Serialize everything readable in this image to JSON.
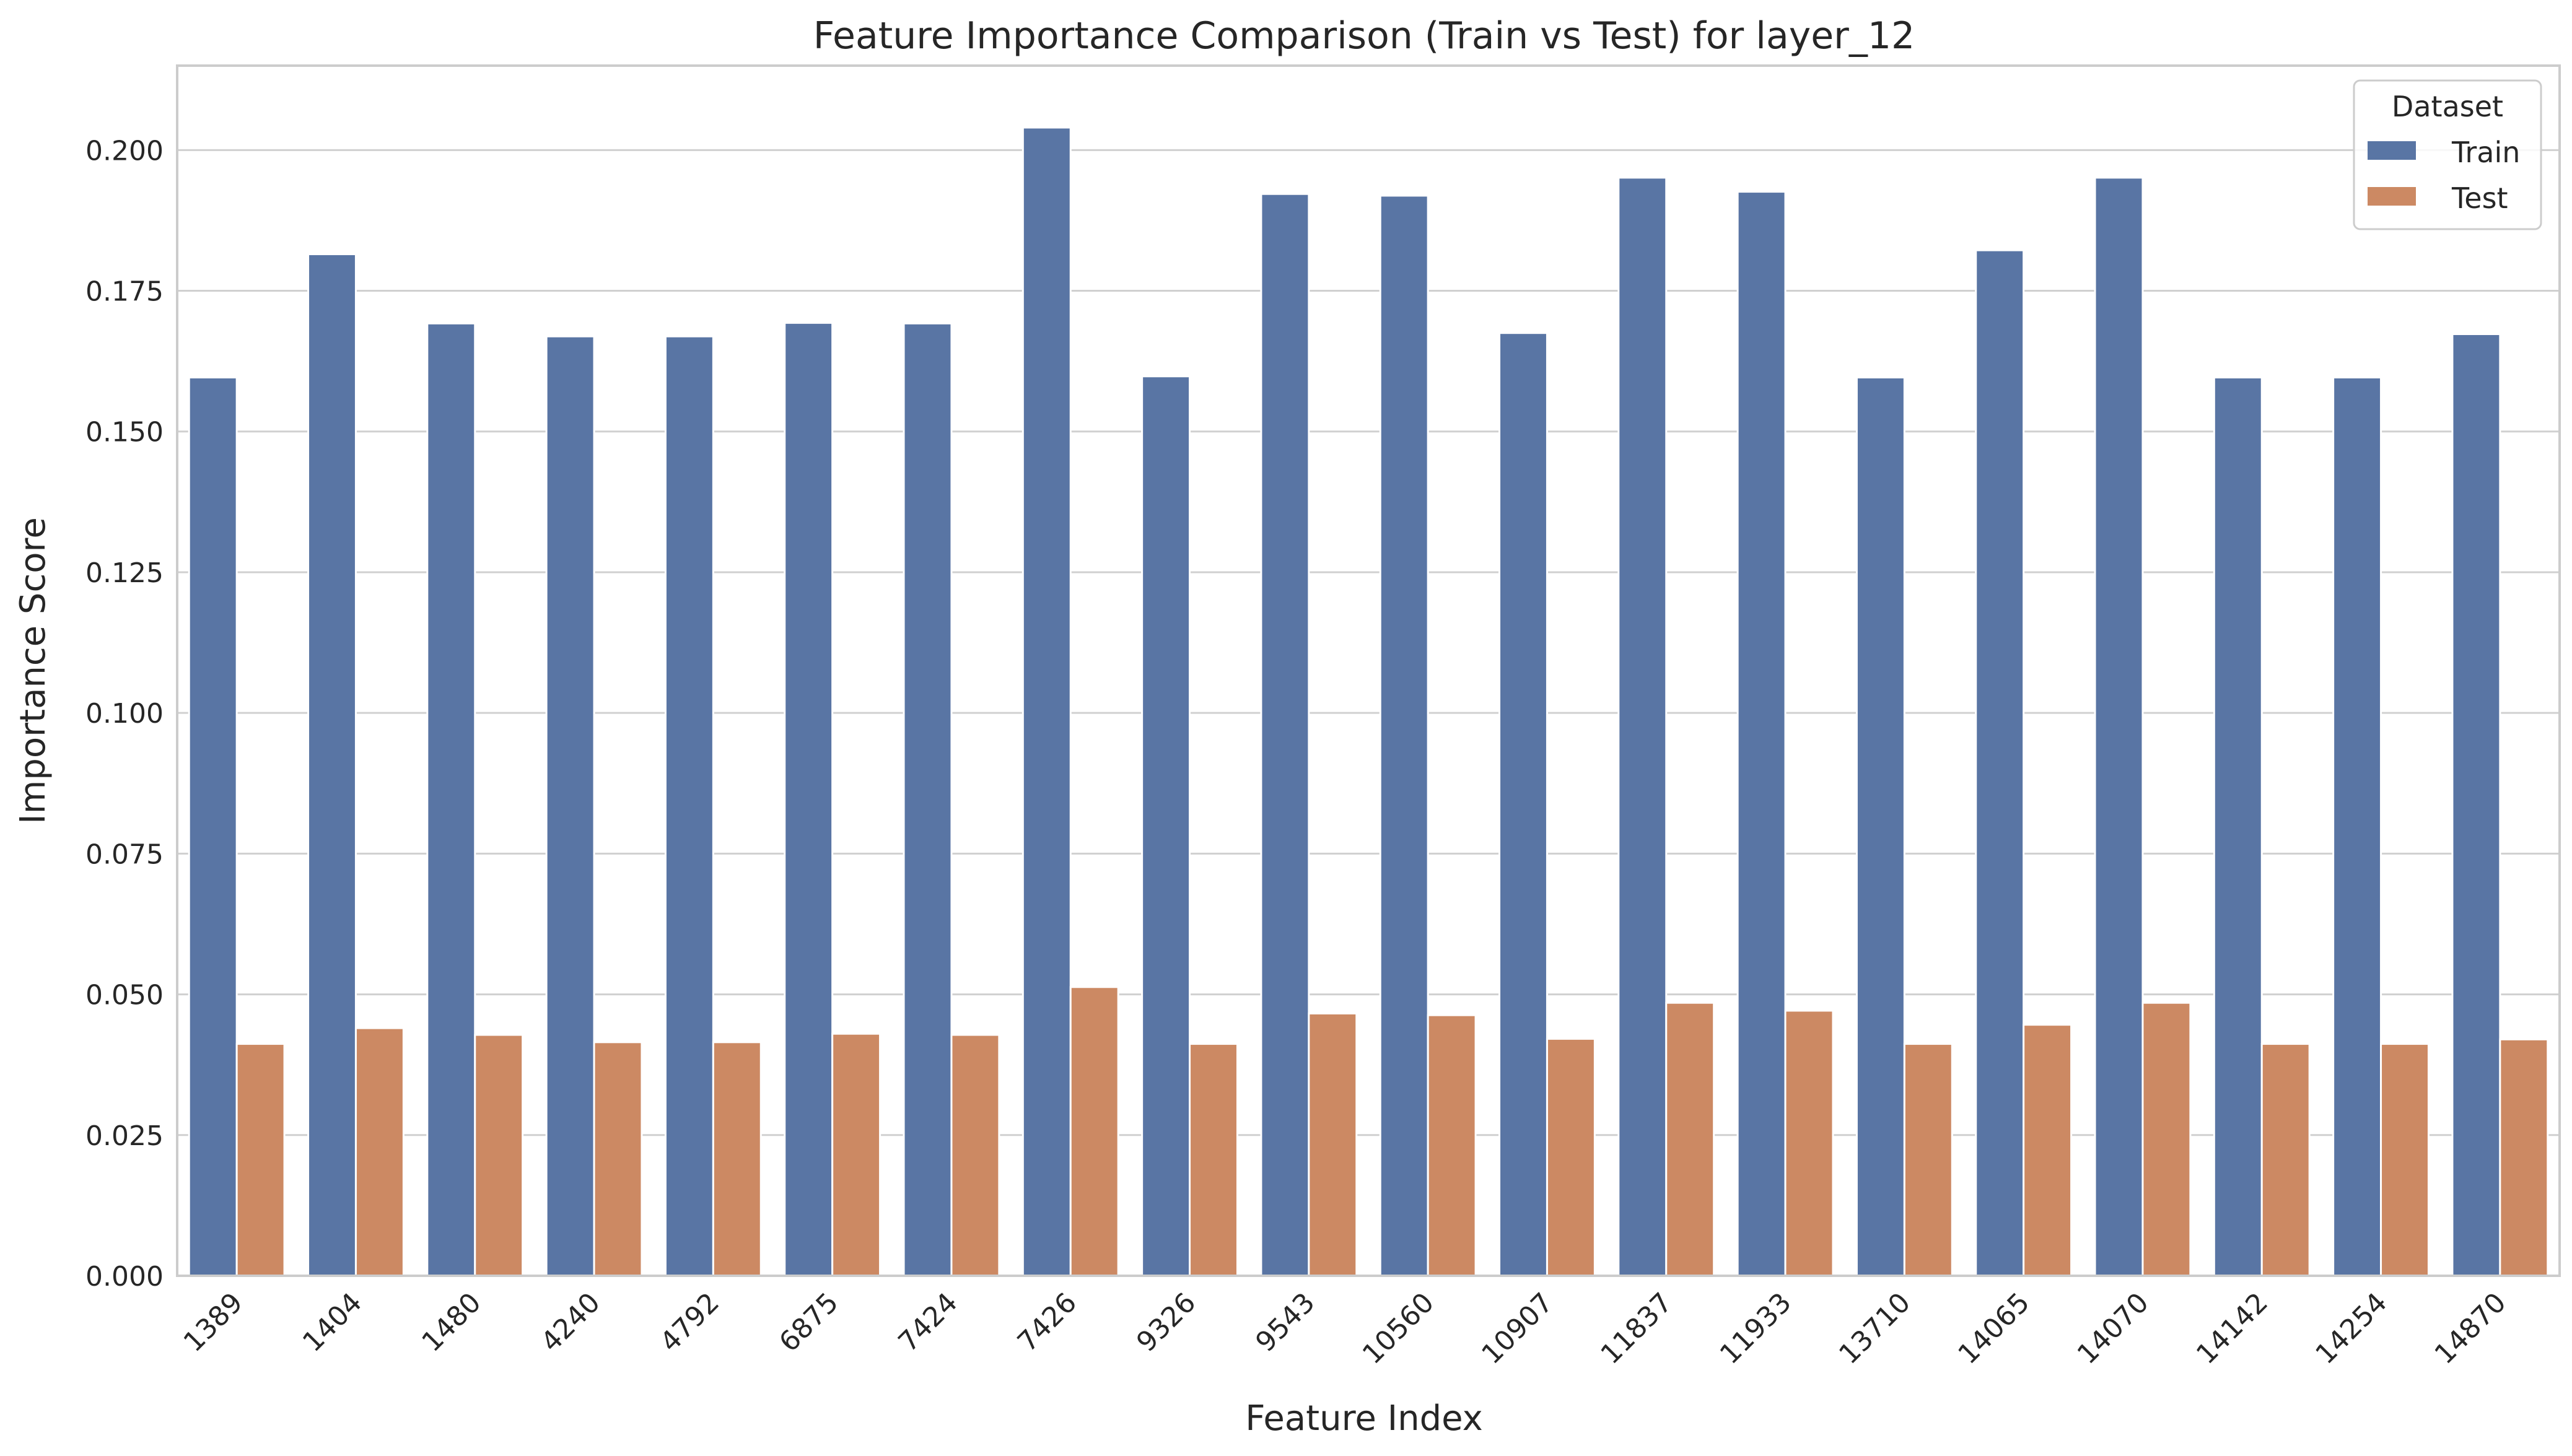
{
  "chart_data": {
    "type": "bar",
    "title": "Feature Importance Comparison (Train vs Test) for layer_12",
    "xlabel": "Feature Index",
    "ylabel": "Importance Score",
    "categories": [
      "1389",
      "1404",
      "1480",
      "4240",
      "4792",
      "6875",
      "7424",
      "7426",
      "9326",
      "9543",
      "10560",
      "10907",
      "11837",
      "11933",
      "13710",
      "14065",
      "14070",
      "14142",
      "14254",
      "14870"
    ],
    "series": [
      {
        "name": "Train",
        "color": "#5975a4",
        "values": [
          0.1596,
          0.1815,
          0.1692,
          0.1669,
          0.1669,
          0.1693,
          0.1692,
          0.204,
          0.1598,
          0.1922,
          0.1919,
          0.1675,
          0.1951,
          0.1926,
          0.1596,
          0.1822,
          0.1951,
          0.1596,
          0.1596,
          0.1673
        ]
      },
      {
        "name": "Test",
        "color": "#cc8963",
        "values": [
          0.0412,
          0.044,
          0.0428,
          0.0415,
          0.0415,
          0.043,
          0.0428,
          0.0513,
          0.0412,
          0.0466,
          0.0463,
          0.0421,
          0.0485,
          0.0471,
          0.0412,
          0.0446,
          0.0485,
          0.0412,
          0.0412,
          0.042
        ]
      }
    ],
    "ylim": [
      0,
      0.215
    ],
    "yticks": [
      "0.000",
      "0.025",
      "0.050",
      "0.075",
      "0.100",
      "0.125",
      "0.150",
      "0.175",
      "0.200"
    ],
    "grid": "horizontal",
    "legend": {
      "title": "Dataset",
      "placement": "top-right"
    }
  }
}
